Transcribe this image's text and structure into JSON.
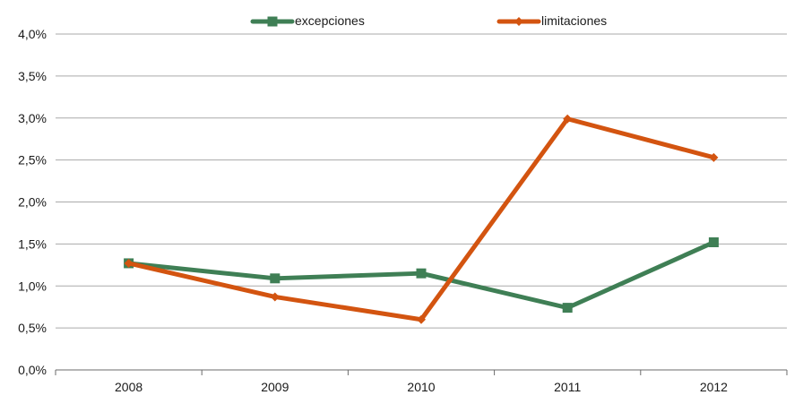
{
  "chart_data": {
    "type": "line",
    "categories": [
      "2008",
      "2009",
      "2010",
      "2011",
      "2012"
    ],
    "series": [
      {
        "name": "excepciones",
        "values": [
          1.27,
          1.09,
          1.15,
          0.74,
          1.52
        ],
        "color": "#3f7f55",
        "marker": "square"
      },
      {
        "name": "limitaciones",
        "values": [
          1.27,
          0.87,
          0.6,
          2.99,
          2.53
        ],
        "color": "#d35410",
        "marker": "diamond"
      }
    ],
    "y_ticks": [
      "0,0%",
      "0,5%",
      "1,0%",
      "1,5%",
      "2,0%",
      "2,5%",
      "3,0%",
      "3,5%",
      "4,0%"
    ],
    "ylim": [
      0,
      4.0
    ],
    "y_unit": "%",
    "grid": "horizontal",
    "legend_position": "top-center"
  }
}
